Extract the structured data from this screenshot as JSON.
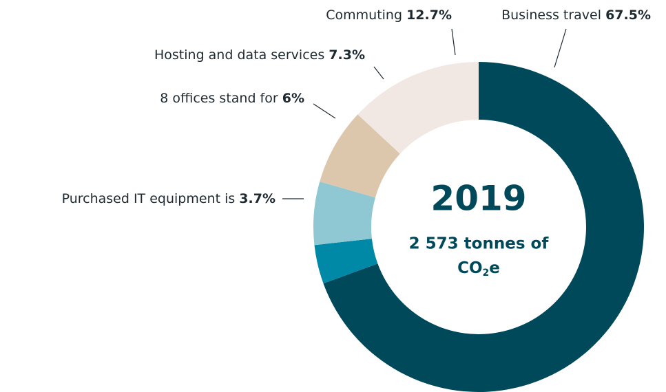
{
  "chart_data": {
    "type": "donut",
    "center_title": "2019",
    "center_subtitle": "2 573 tonnes of",
    "center_unit": {
      "base": "CO",
      "sub": "2",
      "end": "e"
    },
    "categories": [
      "Business travel",
      "Purchased IT equipment is",
      "8 offices stand for",
      "Hosting and data services",
      "Commuting"
    ],
    "values": [
      67.5,
      3.7,
      6,
      7.3,
      12.7
    ],
    "value_labels": [
      "67.5%",
      "3.7%",
      "6%",
      "7.3%",
      "12.7%"
    ],
    "colors": [
      "#00495a",
      "#0089a7",
      "#8fc7d3",
      "#dcc7ad",
      "#f2e8e3"
    ]
  }
}
